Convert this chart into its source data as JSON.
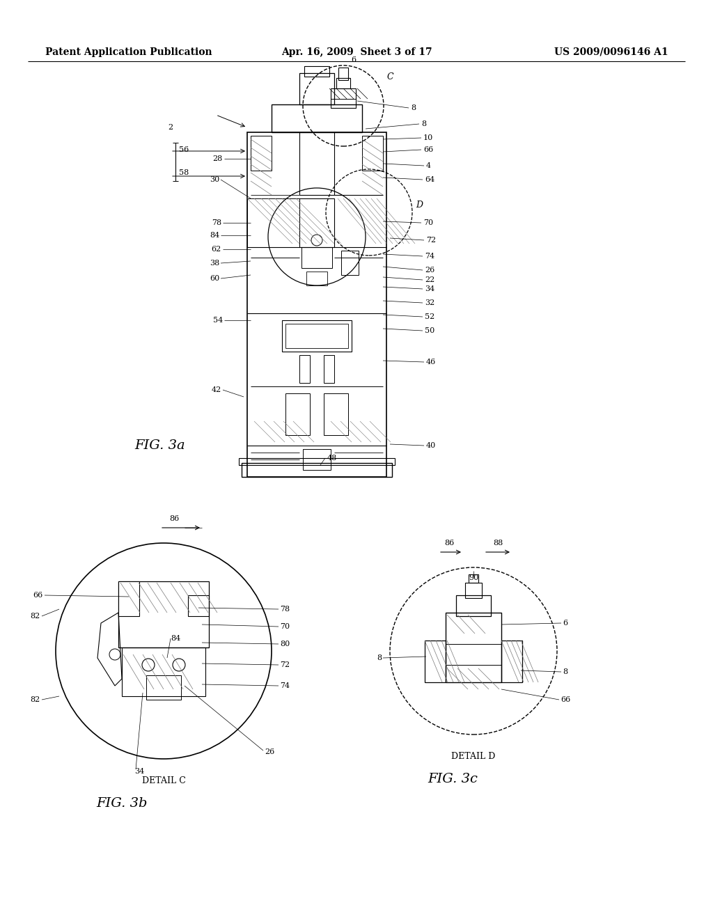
{
  "background_color": "#ffffff",
  "header_left": "Patent Application Publication",
  "header_center": "Apr. 16, 2009  Sheet 3 of 17",
  "header_right": "US 2009/0096146 A1",
  "line_color": "#000000",
  "fig3a_title": "FIG. 3a",
  "fig3b_title": "FIG. 3b",
  "fig3c_title": "FIG. 3c",
  "detail_c_label": "DETAIL C",
  "detail_d_label": "DETAIL D"
}
